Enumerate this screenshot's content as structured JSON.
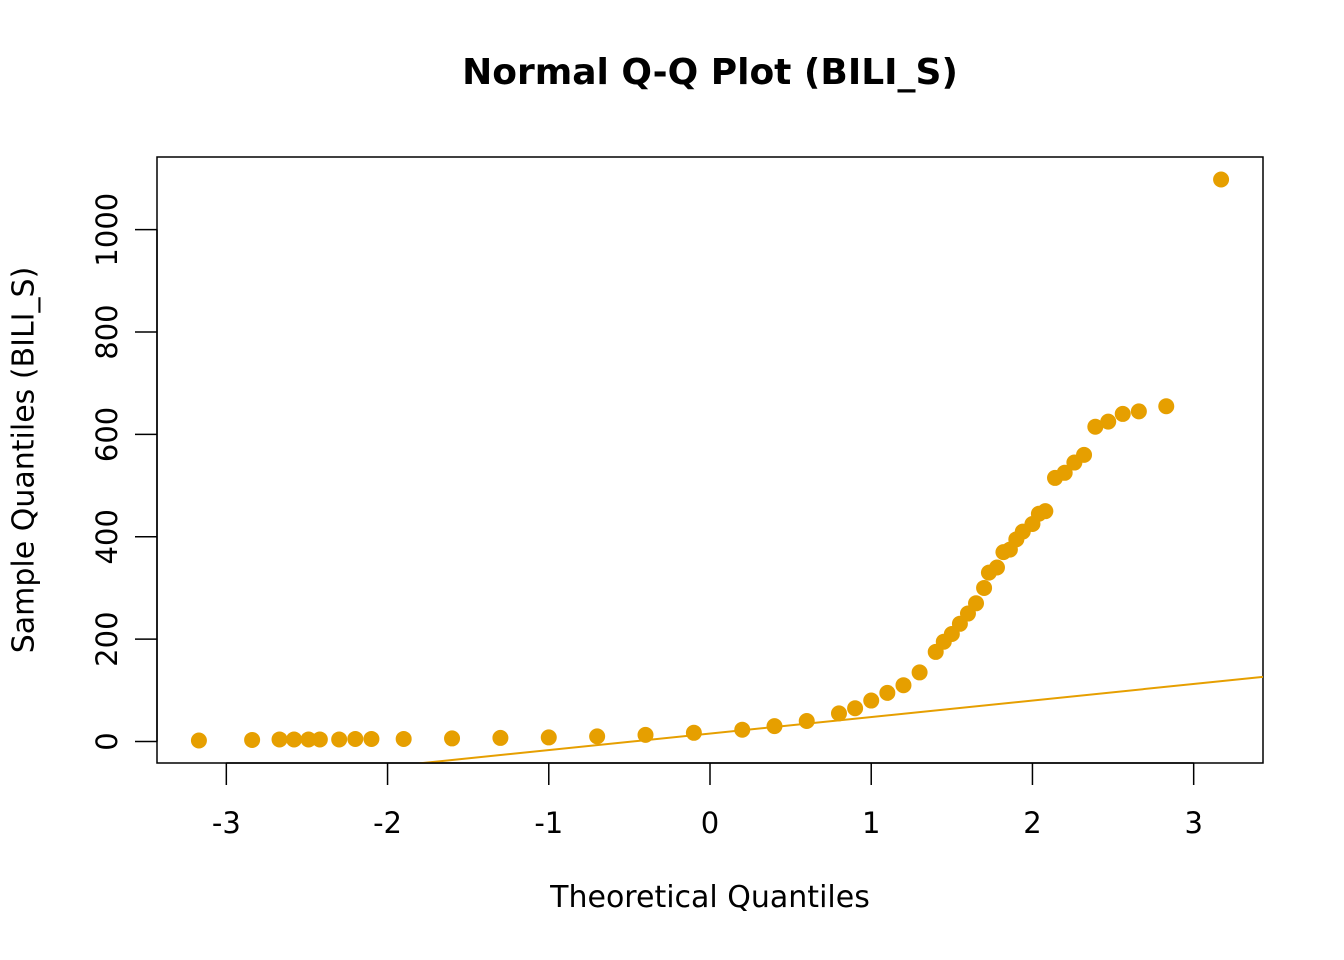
{
  "chart_data": {
    "type": "scatter",
    "title": "Normal Q-Q Plot (BILI_S)",
    "xlabel": "Theoretical Quantiles",
    "ylabel": "Sample Quantiles (BILI_S)",
    "xlim": [
      -3.43,
      3.43
    ],
    "ylim": [
      -42,
      1142
    ],
    "xticks": [
      -3,
      -2,
      -1,
      0,
      1,
      2,
      3
    ],
    "yticks": [
      0,
      200,
      400,
      600,
      800,
      1000
    ],
    "point_color": "#E69F00",
    "line_color": "#E69F00",
    "reference_line": {
      "slope": 32.3,
      "intercept": 15.5
    },
    "grid": false,
    "series": [
      {
        "points": [
          [
            -3.17,
            2
          ],
          [
            -2.84,
            3
          ],
          [
            -2.67,
            4
          ],
          [
            -2.58,
            4
          ],
          [
            -2.49,
            4
          ],
          [
            -2.42,
            4
          ],
          [
            -2.3,
            4
          ],
          [
            -2.2,
            5
          ],
          [
            -2.1,
            5
          ],
          [
            -1.9,
            5
          ],
          [
            -1.6,
            6
          ],
          [
            -1.3,
            7
          ],
          [
            -1.0,
            8
          ],
          [
            -0.7,
            10
          ],
          [
            -0.4,
            13
          ],
          [
            -0.1,
            17
          ],
          [
            0.2,
            23
          ],
          [
            0.4,
            30
          ],
          [
            0.6,
            40
          ],
          [
            0.8,
            55
          ],
          [
            0.9,
            65
          ],
          [
            1.0,
            80
          ],
          [
            1.1,
            95
          ],
          [
            1.2,
            110
          ],
          [
            1.3,
            135
          ],
          [
            1.4,
            175
          ],
          [
            1.45,
            195
          ],
          [
            1.5,
            210
          ],
          [
            1.55,
            230
          ],
          [
            1.6,
            250
          ],
          [
            1.65,
            270
          ],
          [
            1.7,
            300
          ],
          [
            1.73,
            330
          ],
          [
            1.78,
            340
          ],
          [
            1.82,
            370
          ],
          [
            1.86,
            375
          ],
          [
            1.9,
            395
          ],
          [
            1.94,
            410
          ],
          [
            2.0,
            425
          ],
          [
            2.04,
            445
          ],
          [
            2.08,
            450
          ],
          [
            2.14,
            515
          ],
          [
            2.2,
            525
          ],
          [
            2.26,
            545
          ],
          [
            2.32,
            560
          ],
          [
            2.39,
            615
          ],
          [
            2.47,
            625
          ],
          [
            2.56,
            640
          ],
          [
            2.66,
            645
          ],
          [
            2.83,
            655
          ],
          [
            3.17,
            1098
          ]
        ]
      }
    ]
  }
}
